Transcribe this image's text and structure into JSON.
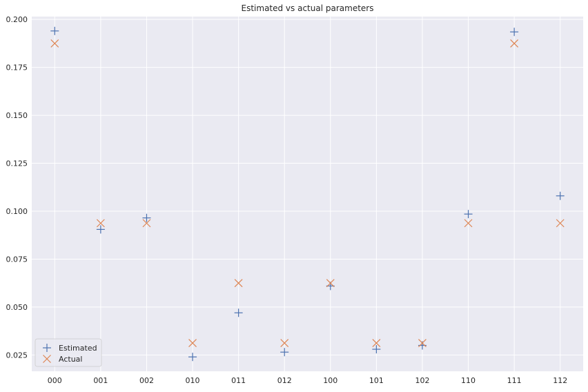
{
  "chart_data": {
    "type": "scatter",
    "title": "Estimated vs actual parameters",
    "xlabel": "",
    "ylabel": "",
    "categories": [
      "000",
      "001",
      "002",
      "010",
      "011",
      "012",
      "100",
      "101",
      "102",
      "110",
      "111",
      "112"
    ],
    "ylim": [
      0.0165,
      0.2015
    ],
    "yticks": [
      0.025,
      0.05,
      0.075,
      0.1,
      0.125,
      0.15,
      0.175,
      0.2
    ],
    "ytick_labels": [
      "0.025",
      "0.050",
      "0.075",
      "0.100",
      "0.125",
      "0.150",
      "0.175",
      "0.200"
    ],
    "grid": true,
    "legend_position": "lower-left",
    "series": [
      {
        "name": "Estimated",
        "marker": "plus",
        "color": "#4c72b0",
        "values": [
          0.194,
          0.0905,
          0.0965,
          0.024,
          0.047,
          0.0265,
          0.061,
          0.028,
          0.03,
          0.0985,
          0.1935,
          0.108
        ]
      },
      {
        "name": "Actual",
        "marker": "x",
        "color": "#dd8452",
        "values": [
          0.1875,
          0.09375,
          0.09375,
          0.03125,
          0.0625,
          0.03125,
          0.0625,
          0.03125,
          0.03125,
          0.09375,
          0.1875,
          0.09375
        ]
      }
    ]
  },
  "colors": {
    "plot_background": "#eaeaf2",
    "grid": "#ffffff",
    "text": "#262626"
  }
}
